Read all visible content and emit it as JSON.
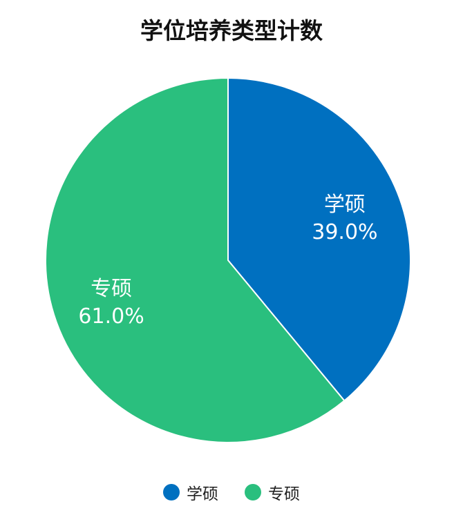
{
  "chart_data": {
    "type": "pie",
    "title": "学位培养类型计数",
    "categories": [
      "学硕",
      "专硕"
    ],
    "values": [
      39.0,
      61.0
    ],
    "value_labels": [
      "39.0%",
      "61.0%"
    ],
    "colors": [
      "#0070C0",
      "#2ABF7E"
    ],
    "legend_position": "bottom"
  }
}
